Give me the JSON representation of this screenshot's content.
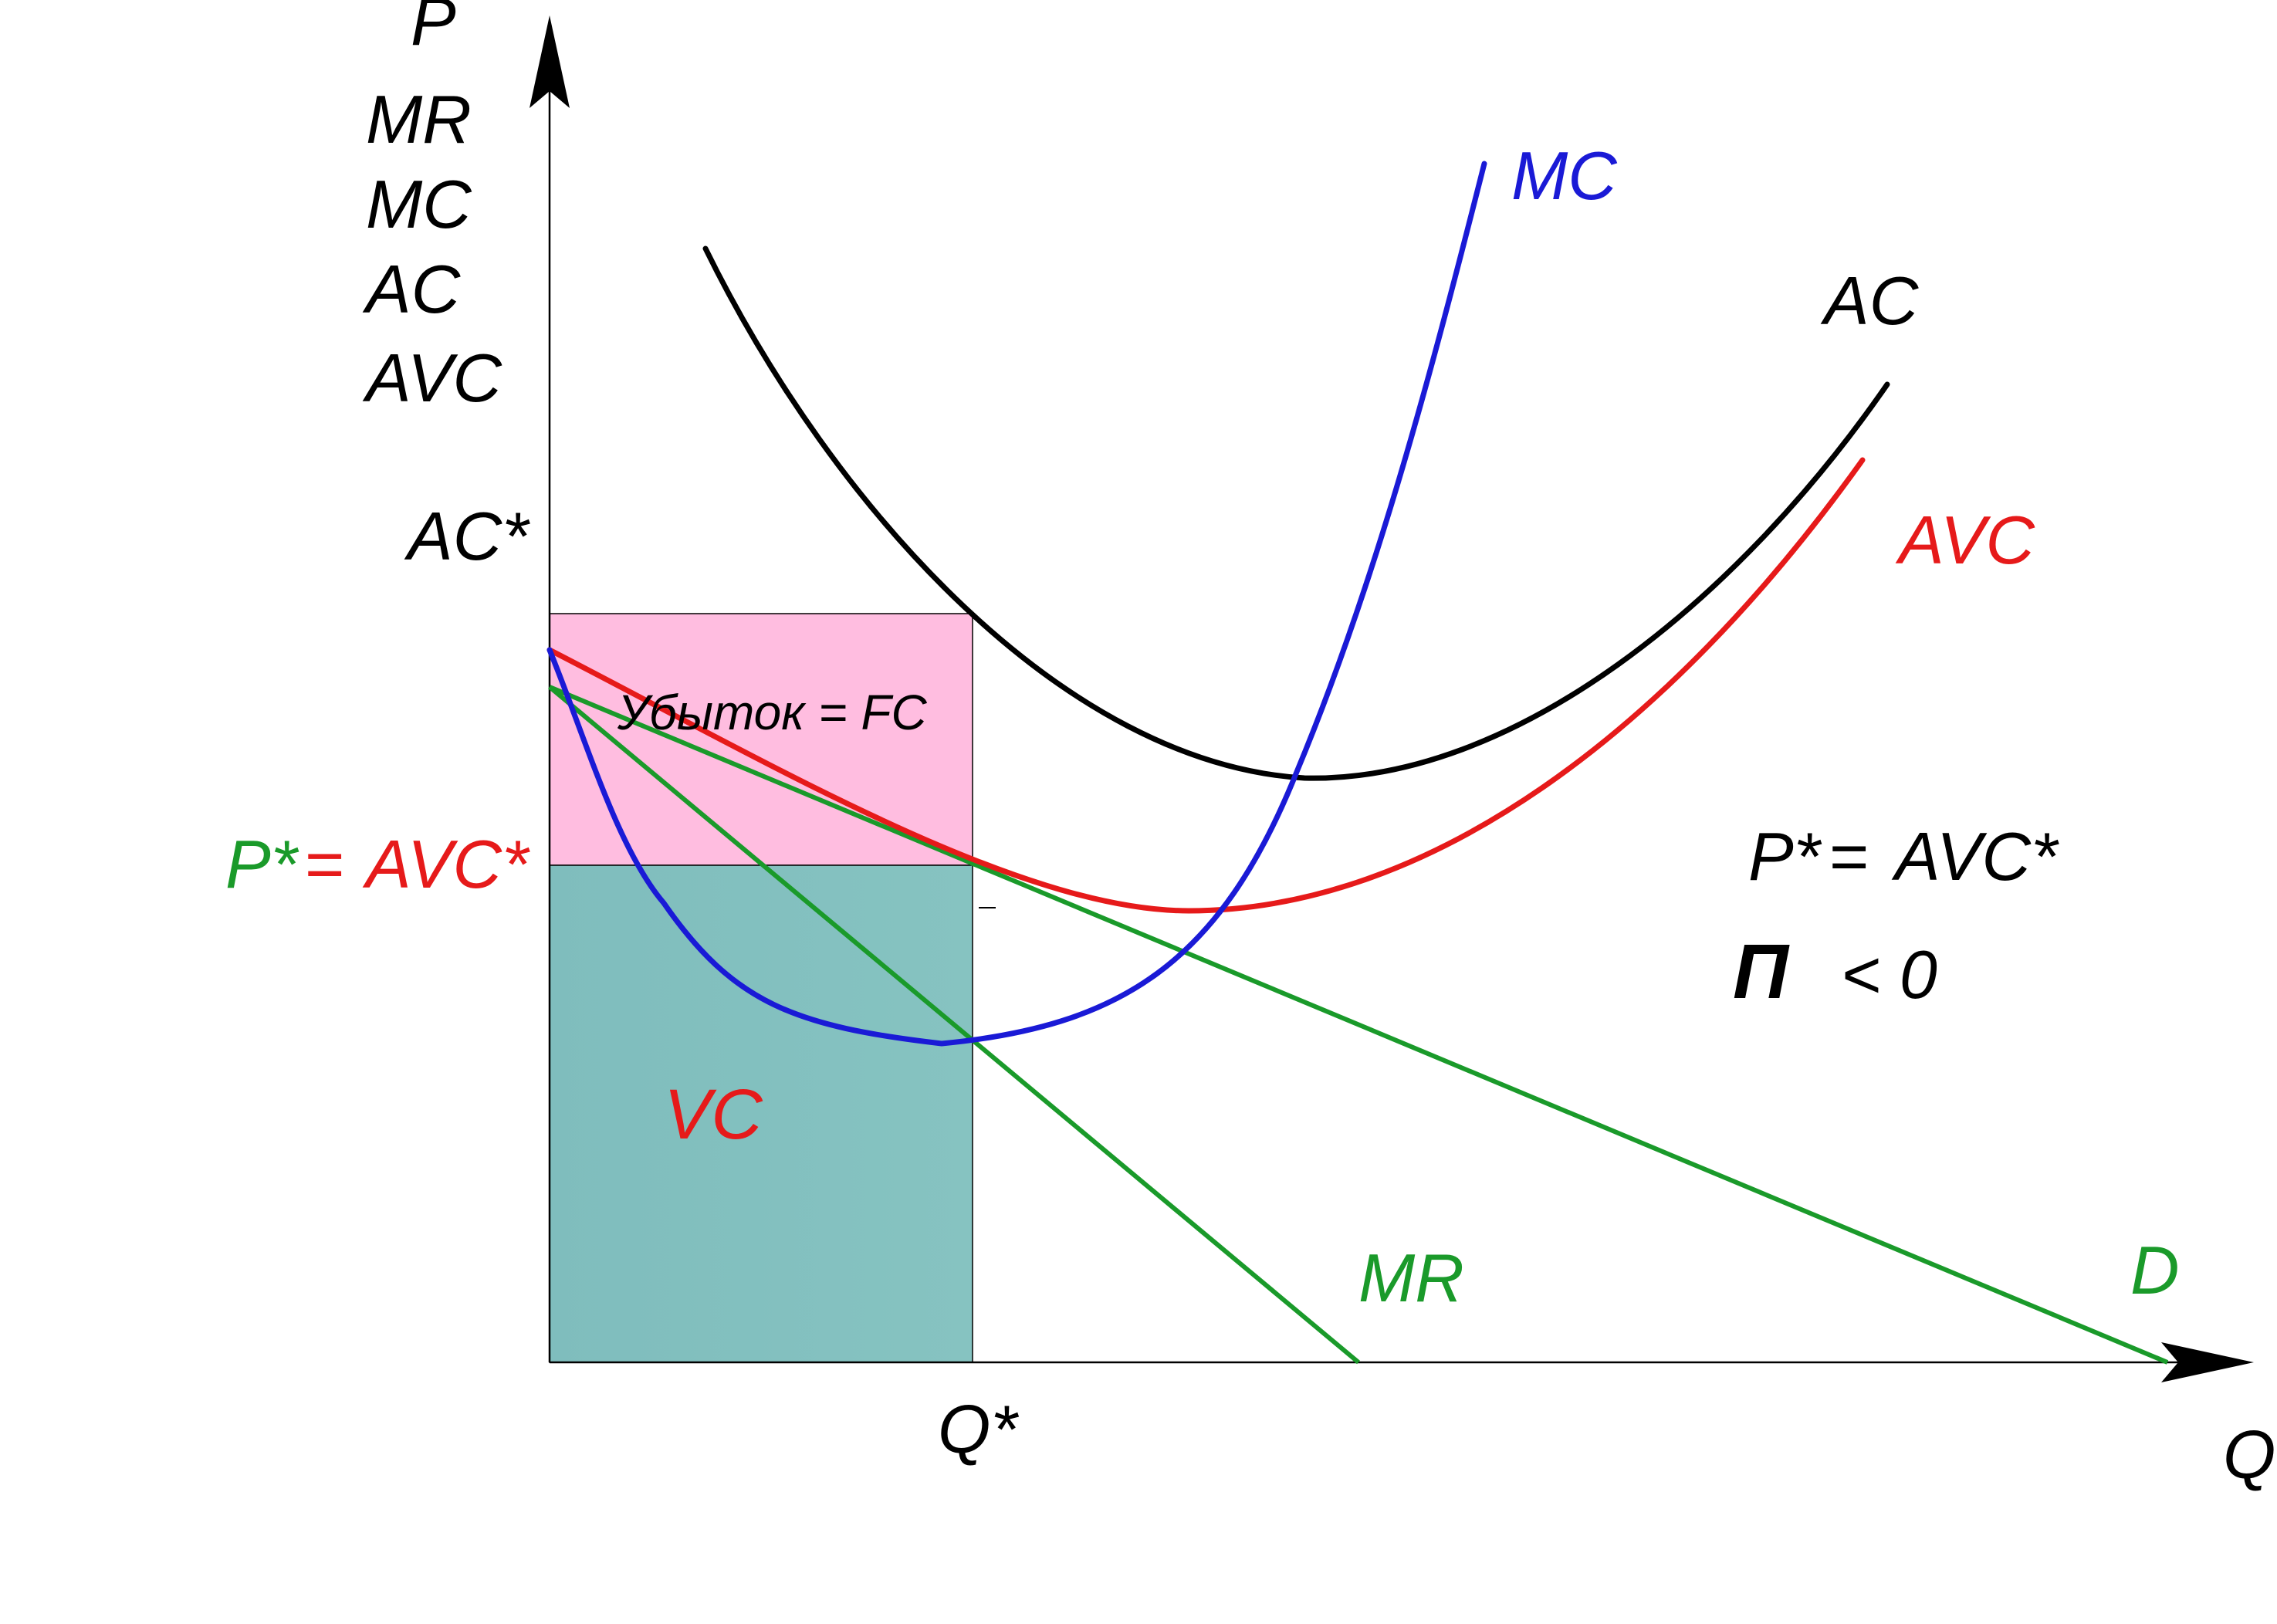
{
  "title": "",
  "axes": {
    "y_labels": [
      "P",
      "MR",
      "MC",
      "AC",
      "AVC"
    ],
    "x_label": "Q"
  },
  "markers": {
    "ac_star": "AC*",
    "p_star": "P*",
    "equals": "=",
    "avc_star": "AVC*",
    "q_star": "Q*"
  },
  "areas": {
    "loss_label": "Убыток = FC",
    "vc_label": "VC"
  },
  "curves": {
    "mc": "MC",
    "ac": "AC",
    "avc": "AVC",
    "mr": "MR",
    "d": "D"
  },
  "conditions": {
    "line1_p": "P*",
    "line1_eq": "=",
    "line1_avc": "AVC*",
    "line2_pi": "П",
    "line2_rest": "< 0"
  },
  "colors": {
    "mc": "#1a1ad6",
    "ac": "#000000",
    "avc": "#e61a1a",
    "mr": "#1a9a2a",
    "d": "#1a9a2a",
    "loss_area": "#ffbfe0",
    "vc_area": "#80bfbf"
  }
}
